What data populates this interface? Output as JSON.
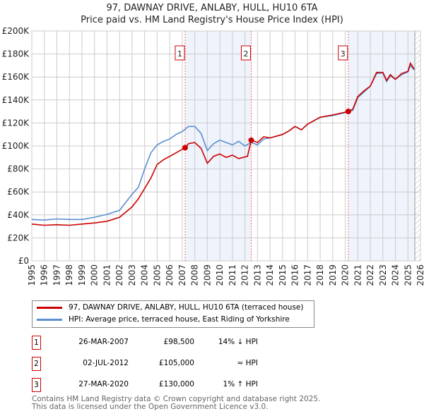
{
  "title": "97, DAWNAY DRIVE, ANLABY, HULL, HU10 6TA",
  "subtitle": "Price paid vs. HM Land Registry's House Price Index (HPI)",
  "colors": {
    "property": "#cc0000",
    "hpi": "#5b8fd0",
    "band": "#eef3fc",
    "grid": "#cccccc"
  },
  "chart_data": {
    "type": "line",
    "title": "97, DAWNAY DRIVE, ANLABY, HULL, HU10 6TA",
    "xlim": [
      1995,
      2026
    ],
    "ylim": [
      0,
      200000
    ],
    "x_ticks": [
      "1995",
      "1996",
      "1997",
      "1998",
      "1999",
      "2000",
      "2001",
      "2002",
      "2003",
      "2004",
      "2005",
      "2006",
      "2007",
      "2008",
      "2009",
      "2010",
      "2011",
      "2012",
      "2013",
      "2014",
      "2015",
      "2016",
      "2017",
      "2018",
      "2019",
      "2020",
      "2021",
      "2022",
      "2023",
      "2024",
      "2025",
      "2026"
    ],
    "y_ticks": [
      {
        "v": 0,
        "label": "£0"
      },
      {
        "v": 20000,
        "label": "£20K"
      },
      {
        "v": 40000,
        "label": "£40K"
      },
      {
        "v": 60000,
        "label": "£60K"
      },
      {
        "v": 80000,
        "label": "£80K"
      },
      {
        "v": 100000,
        "label": "£100K"
      },
      {
        "v": 120000,
        "label": "£120K"
      },
      {
        "v": 140000,
        "label": "£140K"
      },
      {
        "v": 160000,
        "label": "£160K"
      },
      {
        "v": 180000,
        "label": "£180K"
      },
      {
        "v": 200000,
        "label": "£200K"
      }
    ],
    "series": [
      {
        "name": "97, DAWNAY DRIVE, ANLABY, HULL, HU10 6TA (terraced house)",
        "color": "#cc0000",
        "x": [
          1995,
          1996,
          1997,
          1998,
          1999,
          2000,
          2001,
          2002,
          2003,
          2003.5,
          2004,
          2004.5,
          2005,
          2005.5,
          2006,
          2006.5,
          2007.23,
          2007.5,
          2008,
          2008.5,
          2009,
          2009.5,
          2010,
          2010.5,
          2011,
          2011.5,
          2012.2,
          2012.5,
          2013,
          2013.5,
          2014,
          2015,
          2015.5,
          2016,
          2016.5,
          2017,
          2018,
          2019,
          2020.24,
          2020.6,
          2021,
          2021.5,
          2022,
          2022.5,
          2023,
          2023.3,
          2023.6,
          2024,
          2024.5,
          2025,
          2025.2,
          2025.5
        ],
        "y": [
          32000,
          31000,
          31500,
          31000,
          32000,
          33000,
          34500,
          38000,
          47000,
          54000,
          63000,
          72000,
          84000,
          88000,
          91000,
          94000,
          98500,
          102000,
          103000,
          98000,
          85000,
          91000,
          93000,
          90000,
          92000,
          89000,
          91000,
          105000,
          103000,
          108000,
          107000,
          110000,
          113000,
          117000,
          114000,
          119000,
          125000,
          127000,
          130000,
          132000,
          143000,
          148000,
          152000,
          164000,
          164000,
          157000,
          162000,
          158000,
          163000,
          165000,
          172000,
          167000
        ]
      },
      {
        "name": "HPI: Average price, terraced house, East Riding of Yorkshire",
        "color": "#5b8fd0",
        "x": [
          1995,
          1996,
          1997,
          1998,
          1999,
          2000,
          2001,
          2002,
          2003,
          2003.5,
          2004,
          2004.5,
          2005,
          2005.5,
          2006,
          2006.5,
          2007,
          2007.5,
          2008,
          2008.5,
          2009,
          2009.5,
          2010,
          2010.5,
          2011,
          2011.5,
          2012,
          2012.5,
          2013,
          2013.5,
          2014,
          2015,
          2015.5,
          2016,
          2016.5,
          2017,
          2018,
          2019,
          2020,
          2020.6,
          2021,
          2021.5,
          2022,
          2022.5,
          2023,
          2023.3,
          2023.6,
          2024,
          2024.5,
          2025,
          2025.2,
          2025.5
        ],
        "y": [
          36000,
          35500,
          36500,
          36000,
          36000,
          38000,
          40500,
          44000,
          58000,
          64000,
          80000,
          94000,
          101000,
          104000,
          106000,
          110000,
          112500,
          117000,
          117000,
          111000,
          96000,
          102000,
          105000,
          103000,
          101000,
          104000,
          100000,
          103000,
          101000,
          106000,
          107000,
          110000,
          113000,
          117000,
          114000,
          119000,
          125000,
          126500,
          129000,
          131000,
          142000,
          147000,
          152000,
          163000,
          163500,
          156000,
          161000,
          158000,
          162000,
          164500,
          170000,
          166000
        ]
      }
    ],
    "sales": [
      {
        "n": "1",
        "x": 2007.23,
        "y": 98500
      },
      {
        "n": "2",
        "x": 2012.5,
        "y": 105000
      },
      {
        "n": "3",
        "x": 2020.24,
        "y": 130000
      }
    ]
  },
  "legend": {
    "property": "97, DAWNAY DRIVE, ANLABY, HULL, HU10 6TA (terraced house)",
    "hpi": "HPI: Average price, terraced house, East Riding of Yorkshire"
  },
  "transactions": [
    {
      "n": "1",
      "date": "26-MAR-2007",
      "price": "£98,500",
      "hpi": "14% ↓ HPI"
    },
    {
      "n": "2",
      "date": "02-JUL-2012",
      "price": "£105,000",
      "hpi": "≈ HPI"
    },
    {
      "n": "3",
      "date": "27-MAR-2020",
      "price": "£130,000",
      "hpi": "1% ↑ HPI"
    }
  ],
  "footer": [
    "Contains HM Land Registry data © Crown copyright and database right 2025.",
    "This data is licensed under the Open Government Licence v3.0."
  ]
}
